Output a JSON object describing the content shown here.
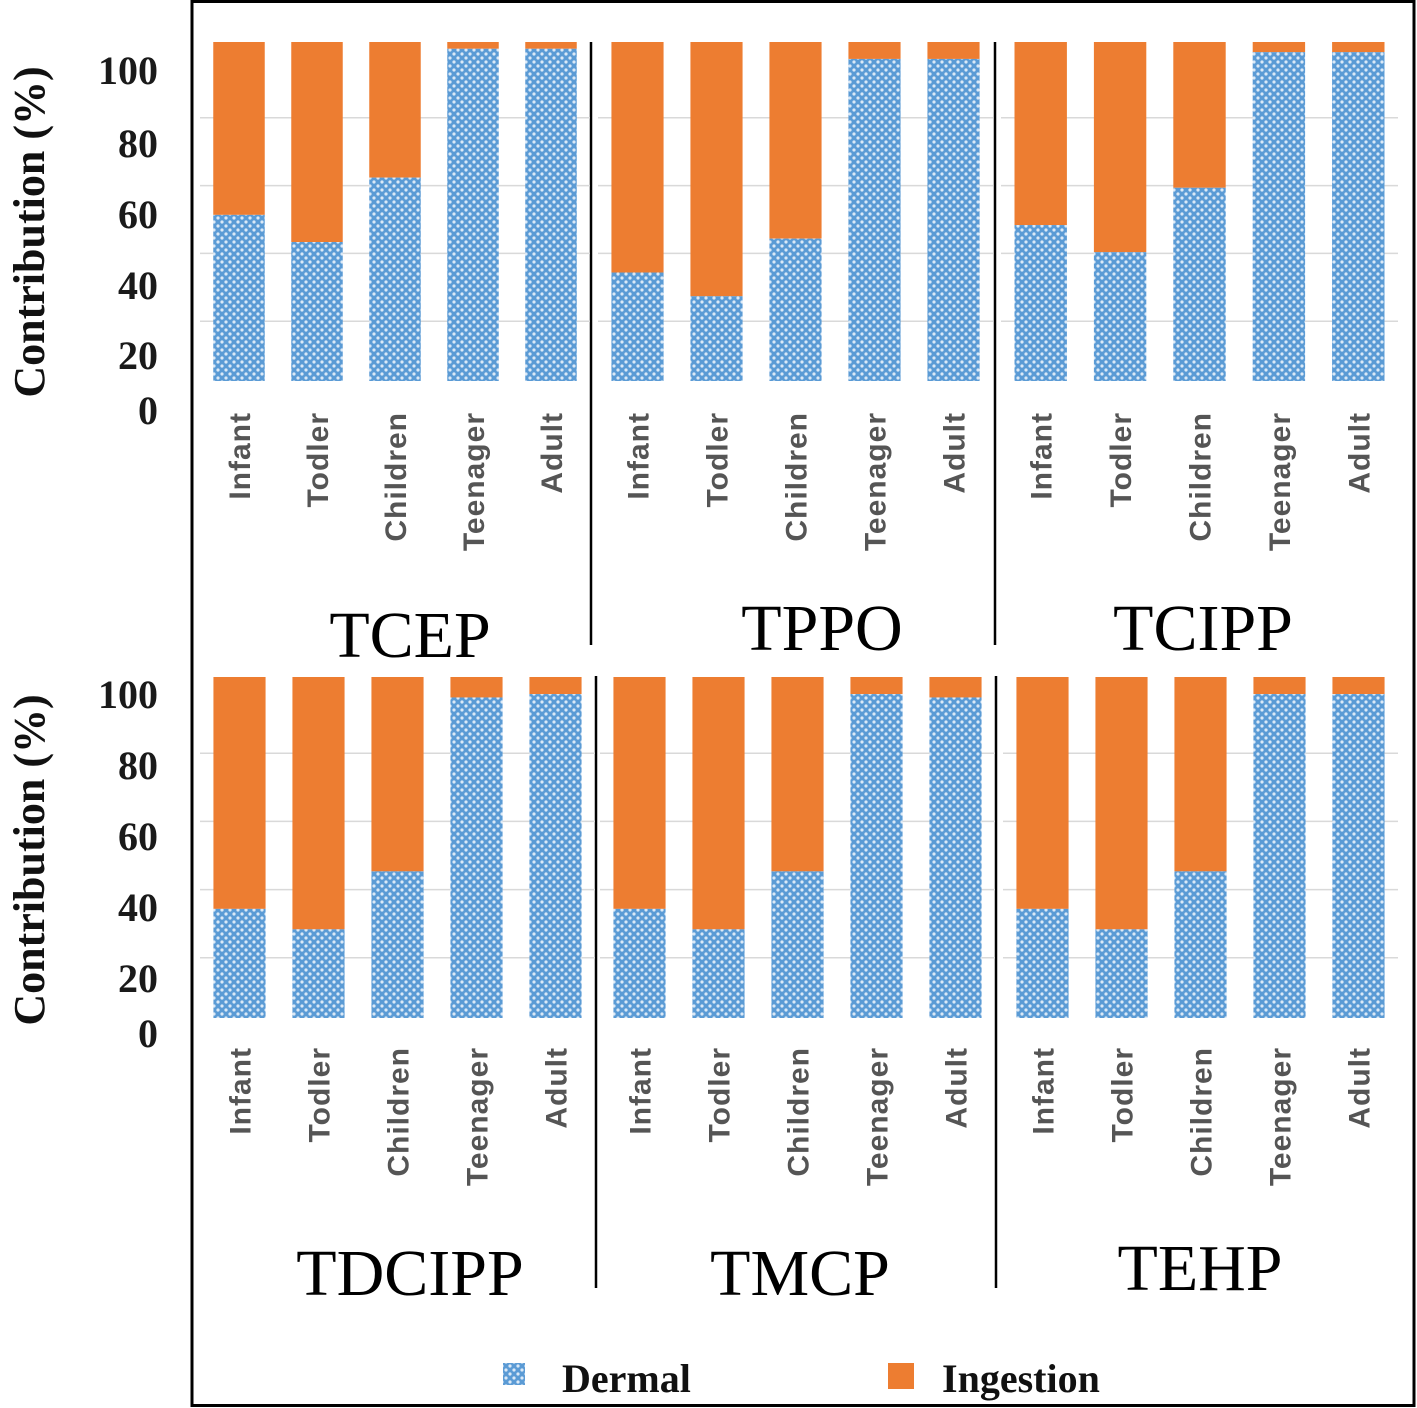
{
  "chart_data": [
    {
      "type": "bar",
      "stacked": true,
      "title": "TCEP",
      "ylabel": "Contribution (%)",
      "ylim": [
        0,
        100
      ],
      "yticks": [
        "0",
        "20",
        "40",
        "60",
        "80",
        "100"
      ],
      "categories": [
        "Infant",
        "Todler",
        "Children",
        "Teenager",
        "Adult"
      ],
      "series": [
        {
          "name": "Dermal",
          "values": [
            49,
            41,
            60,
            98,
            98
          ]
        },
        {
          "name": "Ingestion",
          "values": [
            51,
            59,
            40,
            2,
            2
          ]
        }
      ]
    },
    {
      "type": "bar",
      "stacked": true,
      "title": "TPPO",
      "ylabel": "",
      "ylim": [
        0,
        100
      ],
      "yticks": [],
      "categories": [
        "Infant",
        "Todler",
        "Children",
        "Teenager",
        "Adult"
      ],
      "series": [
        {
          "name": "Dermal",
          "values": [
            32,
            25,
            42,
            95,
            95
          ]
        },
        {
          "name": "Ingestion",
          "values": [
            68,
            75,
            58,
            5,
            5
          ]
        }
      ]
    },
    {
      "type": "bar",
      "stacked": true,
      "title": "TCIPP",
      "ylabel": "",
      "ylim": [
        0,
        100
      ],
      "yticks": [],
      "categories": [
        "Infant",
        "Todler",
        "Children",
        "Teenager",
        "Adult"
      ],
      "series": [
        {
          "name": "Dermal",
          "values": [
            46,
            38,
            57,
            97,
            97
          ]
        },
        {
          "name": "Ingestion",
          "values": [
            54,
            62,
            43,
            3,
            3
          ]
        }
      ]
    },
    {
      "type": "bar",
      "stacked": true,
      "title": "TDCIPP",
      "ylabel": "Contribution (%)",
      "ylim": [
        0,
        100
      ],
      "yticks": [
        "0",
        "20",
        "40",
        "60",
        "80",
        "100"
      ],
      "categories": [
        "Infant",
        "Todler",
        "Children",
        "Teenager",
        "Adult"
      ],
      "series": [
        {
          "name": "Dermal",
          "values": [
            32,
            26,
            43,
            94,
            95
          ]
        },
        {
          "name": "Ingestion",
          "values": [
            68,
            74,
            57,
            6,
            5
          ]
        }
      ]
    },
    {
      "type": "bar",
      "stacked": true,
      "title": "TMCP",
      "ylabel": "",
      "ylim": [
        0,
        100
      ],
      "yticks": [],
      "categories": [
        "Infant",
        "Todler",
        "Children",
        "Teenager",
        "Adult"
      ],
      "series": [
        {
          "name": "Dermal",
          "values": [
            32,
            26,
            43,
            95,
            94
          ]
        },
        {
          "name": "Ingestion",
          "values": [
            68,
            74,
            57,
            5,
            6
          ]
        }
      ]
    },
    {
      "type": "bar",
      "stacked": true,
      "title": "TEHP",
      "ylabel": "",
      "ylim": [
        0,
        100
      ],
      "yticks": [],
      "categories": [
        "Infant",
        "Todler",
        "Children",
        "Teenager",
        "Adult"
      ],
      "series": [
        {
          "name": "Dermal",
          "values": [
            32,
            26,
            43,
            95,
            95
          ]
        },
        {
          "name": "Ingestion",
          "values": [
            68,
            74,
            57,
            5,
            5
          ]
        }
      ]
    }
  ],
  "legend": {
    "position": "bottom",
    "items": [
      {
        "label": "Dermal",
        "pattern": "dotted",
        "color": "#5b9bd5"
      },
      {
        "label": "Ingestion",
        "pattern": "solid",
        "color": "#ed7d31"
      }
    ]
  },
  "colors": {
    "dermal": "#5b9bd5",
    "ingestion": "#ed7d31",
    "gridline": "#d9d9d9",
    "frame": "#000000"
  }
}
